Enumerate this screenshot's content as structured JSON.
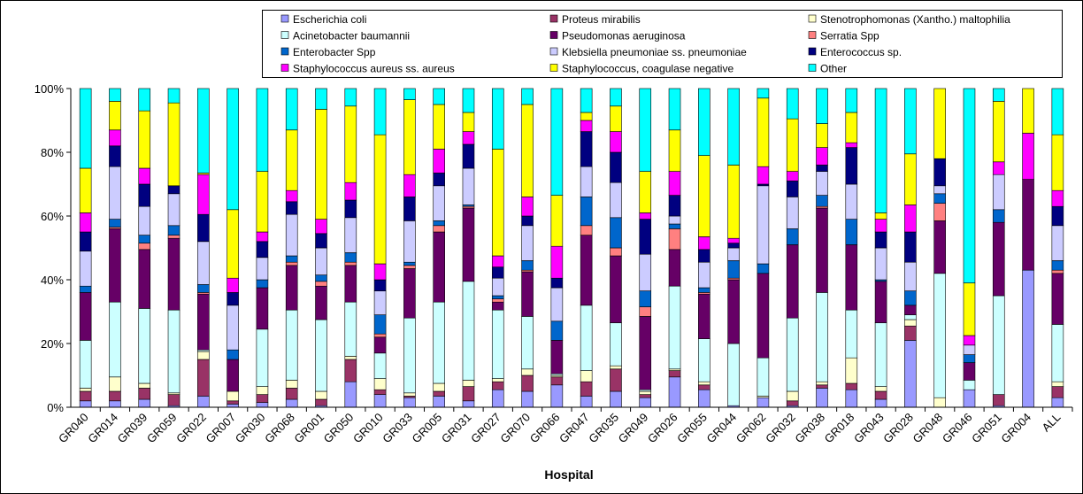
{
  "chart_data": {
    "type": "stacked_bar_100",
    "xlabel": "Hospital",
    "categories": [
      "GR040",
      "GR014",
      "GR039",
      "GR059",
      "GR022",
      "GR007",
      "GR030",
      "GR068",
      "GR001",
      "GR050",
      "GR010",
      "GR033",
      "GR005",
      "GR031",
      "GR027",
      "GR070",
      "GR066",
      "GR047",
      "GR035",
      "GR049",
      "GR026",
      "GR055",
      "GR044",
      "GR062",
      "GR032",
      "GR038",
      "GR018",
      "GR043",
      "GR028",
      "GR048",
      "GR046",
      "GR051",
      "GR004",
      "ALL"
    ],
    "ylim": [
      0,
      100
    ],
    "yticks": [
      {
        "value": 0,
        "label": "0%"
      },
      {
        "value": 20,
        "label": "20%"
      },
      {
        "value": 40,
        "label": "40%"
      },
      {
        "value": 60,
        "label": "60%"
      },
      {
        "value": 80,
        "label": "80%"
      },
      {
        "value": 100,
        "label": "100%"
      }
    ],
    "series": [
      {
        "name": "Escherichia coli",
        "color": "#9999ff",
        "values": [
          2,
          2,
          2.5,
          0.5,
          3.5,
          1,
          1.5,
          2.5,
          0.5,
          8,
          4,
          3,
          3.5,
          2,
          5.5,
          5,
          7,
          3.5,
          5,
          3,
          9.5,
          5.5,
          0.5,
          3,
          0.5,
          6,
          5.5,
          2.5,
          21,
          0,
          5.5,
          0.5,
          43,
          3
        ]
      },
      {
        "name": "Proteus mirabilis",
        "color": "#993366",
        "values": [
          3,
          3,
          3.5,
          3.5,
          11.5,
          1,
          2.5,
          3.5,
          2,
          7,
          1.5,
          0.5,
          1.5,
          4.5,
          2.5,
          5,
          2.5,
          4.5,
          7,
          1,
          2,
          1.5,
          0,
          0,
          1.5,
          1,
          2,
          2.5,
          4.5,
          0,
          0,
          3.5,
          0,
          3.5
        ]
      },
      {
        "name": "Stenotrophomonas (Xantho.) maltophilia",
        "color": "#ffffcc",
        "values": [
          1,
          4.5,
          1.5,
          0.5,
          2.5,
          3,
          2.5,
          2.5,
          2.5,
          1,
          3.5,
          1,
          2.5,
          2,
          1,
          2,
          0.5,
          3.5,
          1,
          1,
          0.5,
          1,
          0,
          0.5,
          3,
          1,
          8,
          1.5,
          2,
          3,
          0,
          0,
          0,
          1.5
        ]
      },
      {
        "name": "Acinetobacter baumannii",
        "color": "#ccffff",
        "values": [
          15,
          23.5,
          23.5,
          26,
          0.5,
          0,
          18,
          22,
          22.5,
          17,
          8,
          23.5,
          25.5,
          31,
          21.5,
          16.5,
          0.5,
          20.5,
          13.5,
          0.5,
          26,
          13.5,
          19.5,
          12,
          23,
          28,
          15,
          20,
          1.5,
          39,
          3,
          31,
          0,
          18
        ]
      },
      {
        "name": "Pseudomonas aeruginosa",
        "color": "#660066",
        "values": [
          15,
          23,
          18.5,
          22.5,
          17.5,
          10,
          13,
          14,
          10.5,
          11.5,
          5,
          15.5,
          22,
          23,
          2.5,
          14,
          10.5,
          22,
          21,
          23,
          11.5,
          14,
          20,
          26.5,
          23,
          26.5,
          20.5,
          13,
          3,
          16.5,
          5.5,
          23,
          28.5,
          16
        ]
      },
      {
        "name": "Serratia Spp",
        "color": "#ff8080",
        "values": [
          0,
          0.5,
          2,
          1,
          0.5,
          0,
          0,
          1,
          1.5,
          1,
          1,
          1,
          2,
          0.5,
          1,
          0.5,
          0,
          3,
          2.5,
          3,
          6.5,
          0.5,
          0.5,
          0,
          0,
          0.5,
          0,
          0,
          0,
          5.5,
          0,
          0,
          0,
          1
        ]
      },
      {
        "name": "Enterobacter Spp",
        "color": "#0066cc",
        "values": [
          2,
          2.5,
          2.5,
          3,
          2.5,
          3,
          2.5,
          2,
          2,
          3,
          6,
          1,
          1.5,
          0.5,
          1,
          3,
          6,
          9,
          9.5,
          5,
          1.5,
          1.5,
          5.5,
          3,
          5,
          3.5,
          8,
          0.5,
          4.5,
          3,
          2.5,
          4,
          0,
          3
        ]
      },
      {
        "name": "Klebsiella pneumoniae ss. pneumoniae",
        "color": "#ccccff",
        "values": [
          11,
          16.5,
          9,
          10,
          13.5,
          14,
          7,
          13,
          8.5,
          11,
          7.5,
          13,
          11,
          11.5,
          5.5,
          11,
          10.5,
          9.5,
          11,
          11.5,
          2.5,
          8,
          4,
          24.5,
          10,
          7.5,
          11,
          10,
          9,
          2.5,
          3,
          11,
          0,
          11
        ]
      },
      {
        "name": "Enterococcus sp.",
        "color": "#000080",
        "values": [
          6,
          6.5,
          7,
          2.5,
          8.5,
          4,
          5,
          4,
          4.5,
          5.5,
          3.5,
          7.5,
          4,
          7.5,
          3.5,
          3,
          3,
          11,
          9.5,
          11,
          6.5,
          4,
          1.5,
          0.5,
          5,
          2,
          11.5,
          5,
          9.5,
          8.5,
          0,
          0,
          0,
          6
        ]
      },
      {
        "name": "Staphylococcus aureus ss. aureus",
        "color": "#ff00ff",
        "values": [
          6,
          5,
          5,
          0,
          12.5,
          4.5,
          3,
          3.5,
          4.5,
          5.5,
          5,
          7,
          7.5,
          4,
          3.5,
          6,
          10,
          3.5,
          6.5,
          2,
          7.5,
          4,
          1.5,
          5.5,
          3,
          5.5,
          1.5,
          4,
          8.5,
          0,
          3,
          4,
          14.5,
          5
        ]
      },
      {
        "name": "Staphylococcus, coagulase negative",
        "color": "#ffff00",
        "values": [
          14,
          9,
          18,
          26,
          0.5,
          21.5,
          19,
          19,
          34.5,
          24,
          40.5,
          23.5,
          14,
          6,
          33.5,
          29,
          16,
          2.5,
          8,
          13,
          13,
          25.5,
          23,
          21.5,
          16.5,
          7.5,
          9.5,
          2,
          16,
          22,
          16.5,
          19,
          14,
          17.5
        ]
      },
      {
        "name": "Other",
        "color": "#00ffff",
        "values": [
          25,
          4,
          7,
          4.5,
          26.5,
          38,
          26,
          13,
          6.5,
          5.5,
          14.5,
          3.5,
          5,
          7.5,
          19,
          5,
          33.5,
          7.5,
          5.5,
          26,
          13,
          21,
          24,
          3,
          9.5,
          11,
          7.5,
          39,
          20.5,
          0,
          61,
          4,
          0,
          14.5
        ]
      }
    ]
  }
}
